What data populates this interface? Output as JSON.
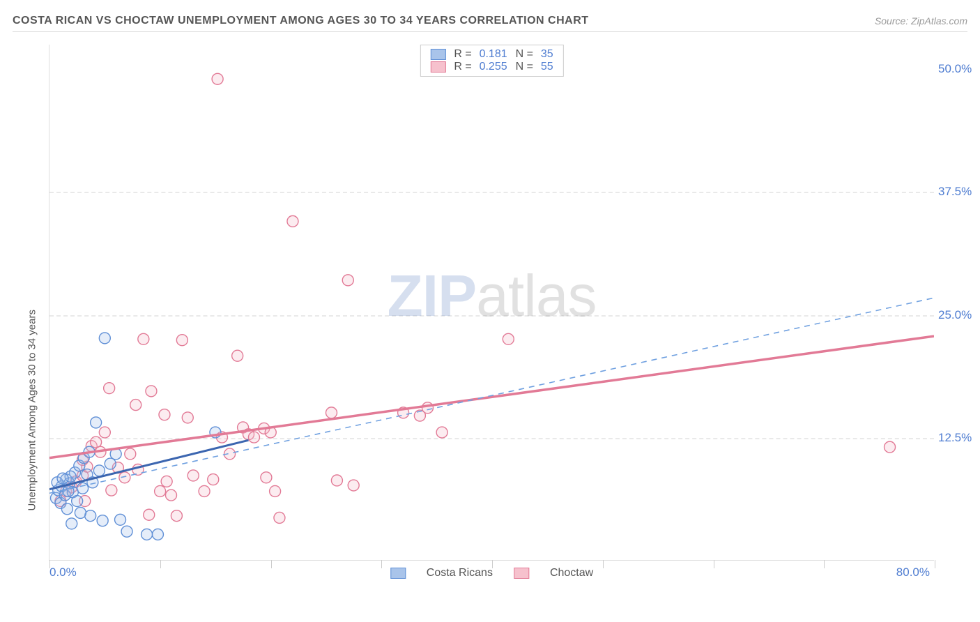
{
  "title": "COSTA RICAN VS CHOCTAW UNEMPLOYMENT AMONG AGES 30 TO 34 YEARS CORRELATION CHART",
  "source": "Source: ZipAtlas.com",
  "chart": {
    "type": "scatter",
    "background_color": "#ffffff",
    "grid_color": "#e9e9e9",
    "axis_color": "#dddddd",
    "tick_font_color": "#4f7dd1",
    "tick_fontsize": 17,
    "axis_label_color": "#555555",
    "axis_label_fontsize": 15,
    "ylabel": "Unemployment Among Ages 30 to 34 years",
    "xlim": [
      0,
      80
    ],
    "ylim": [
      0,
      52.5
    ],
    "x_tick_positions": [
      0,
      10,
      20,
      30,
      40,
      50,
      60,
      70,
      80
    ],
    "y_gridlines": [
      12.5,
      25.0,
      37.5
    ],
    "y_tick_labels": [
      "12.5%",
      "25.0%",
      "37.5%",
      "50.0%"
    ],
    "y_tick_positions": [
      12.5,
      25.0,
      37.5,
      50.0
    ],
    "x_min_label": "0.0%",
    "x_max_label": "80.0%",
    "watermark_1": "ZIP",
    "watermark_2": "atlas",
    "legend_top": [
      {
        "swatch_fill": "#a9c4ea",
        "swatch_border": "#5f8fd6",
        "r_label": "R =",
        "r_value": "0.181",
        "n_label": "N =",
        "n_value": "35"
      },
      {
        "swatch_fill": "#f6c1cd",
        "swatch_border": "#e27a96",
        "r_label": "R =",
        "r_value": "0.255",
        "n_label": "N =",
        "n_value": "55"
      }
    ],
    "legend_bottom": [
      {
        "swatch_fill": "#a9c4ea",
        "swatch_border": "#5f8fd6",
        "label": "Costa Ricans"
      },
      {
        "swatch_fill": "#f6c1cd",
        "swatch_border": "#e27a96",
        "label": "Choctaw"
      }
    ],
    "marker_radius": 8,
    "marker_stroke_width": 1.4,
    "marker_fill_opacity": 0.28,
    "series": {
      "costa_ricans": {
        "color": "#5f8fd6",
        "fill": "#a0bfe8",
        "line_style": "solid",
        "line_width": 3,
        "trend_dashed_color": "#6fa0e0",
        "trend_dashed_width": 1.6,
        "trend": {
          "x1": 0,
          "y1": 7.2,
          "x2": 18,
          "y2": 12.2
        },
        "dashed_trend": {
          "x1": 0,
          "y1": 6.8,
          "x2": 80,
          "y2": 26.7
        },
        "points": [
          [
            0.6,
            6.3
          ],
          [
            0.8,
            7.1
          ],
          [
            1.0,
            5.8
          ],
          [
            1.1,
            7.5
          ],
          [
            1.4,
            6.6
          ],
          [
            1.5,
            8.2
          ],
          [
            1.6,
            5.2
          ],
          [
            1.8,
            7.8
          ],
          [
            2.1,
            6.9
          ],
          [
            2.3,
            8.9
          ],
          [
            2.5,
            6.0
          ],
          [
            2.7,
            9.6
          ],
          [
            3.0,
            7.3
          ],
          [
            3.1,
            10.4
          ],
          [
            3.4,
            8.7
          ],
          [
            3.6,
            11.0
          ],
          [
            3.7,
            4.5
          ],
          [
            3.9,
            7.9
          ],
          [
            4.2,
            14.0
          ],
          [
            4.5,
            9.1
          ],
          [
            5.0,
            22.6
          ],
          [
            5.5,
            9.8
          ],
          [
            6.0,
            10.8
          ],
          [
            6.4,
            4.1
          ],
          [
            2.0,
            3.7
          ],
          [
            1.9,
            8.5
          ],
          [
            2.8,
            4.8
          ],
          [
            4.8,
            4.0
          ],
          [
            7.0,
            2.9
          ],
          [
            8.8,
            2.6
          ],
          [
            9.8,
            2.6
          ],
          [
            15.0,
            13.0
          ],
          [
            0.7,
            7.9
          ],
          [
            1.2,
            8.3
          ],
          [
            1.7,
            7.0
          ]
        ]
      },
      "choctaw": {
        "color": "#e27a96",
        "fill": "#f3bac8",
        "line_style": "solid",
        "line_width": 3.5,
        "trend": {
          "x1": 0,
          "y1": 10.4,
          "x2": 80,
          "y2": 22.8
        },
        "points": [
          [
            1.0,
            6.0
          ],
          [
            1.5,
            7.0
          ],
          [
            2.0,
            7.4
          ],
          [
            2.4,
            8.0
          ],
          [
            3.0,
            8.6
          ],
          [
            3.4,
            9.5
          ],
          [
            3.8,
            11.6
          ],
          [
            4.2,
            12.0
          ],
          [
            4.6,
            11.0
          ],
          [
            5.0,
            13.0
          ],
          [
            5.6,
            7.1
          ],
          [
            6.2,
            9.4
          ],
          [
            6.8,
            8.4
          ],
          [
            7.3,
            10.8
          ],
          [
            7.8,
            15.8
          ],
          [
            8.5,
            22.5
          ],
          [
            9.0,
            4.6
          ],
          [
            9.2,
            17.2
          ],
          [
            10.0,
            7.0
          ],
          [
            10.4,
            14.8
          ],
          [
            10.6,
            8.0
          ],
          [
            11.0,
            6.6
          ],
          [
            11.5,
            4.5
          ],
          [
            12.0,
            22.4
          ],
          [
            12.5,
            14.5
          ],
          [
            13.0,
            8.6
          ],
          [
            14.0,
            7.0
          ],
          [
            14.8,
            8.2
          ],
          [
            15.2,
            49.0
          ],
          [
            15.6,
            12.5
          ],
          [
            16.3,
            10.8
          ],
          [
            17.0,
            20.8
          ],
          [
            17.5,
            13.5
          ],
          [
            18.0,
            12.8
          ],
          [
            18.5,
            12.5
          ],
          [
            19.4,
            13.4
          ],
          [
            19.6,
            8.4
          ],
          [
            20.0,
            13.0
          ],
          [
            20.4,
            7.0
          ],
          [
            20.8,
            4.3
          ],
          [
            22.0,
            34.5
          ],
          [
            25.5,
            15.0
          ],
          [
            26.0,
            8.1
          ],
          [
            27.0,
            28.5
          ],
          [
            27.5,
            7.6
          ],
          [
            32.0,
            15.0
          ],
          [
            33.5,
            14.7
          ],
          [
            34.2,
            15.5
          ],
          [
            35.5,
            13.0
          ],
          [
            41.5,
            22.5
          ],
          [
            3.2,
            6.0
          ],
          [
            5.4,
            17.5
          ],
          [
            8.0,
            9.2
          ],
          [
            76.0,
            11.5
          ],
          [
            3.0,
            10.2
          ]
        ]
      }
    }
  }
}
